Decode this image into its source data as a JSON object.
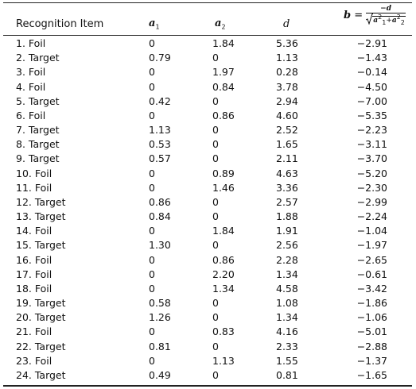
{
  "header": {
    "item": "Recognition Item",
    "a1": {
      "base": "a",
      "sub": "1"
    },
    "a2": {
      "base": "a",
      "sub": "2"
    },
    "d": "d",
    "b": {
      "symbol": "b",
      "equals": "=",
      "numerator": "−d",
      "t1": {
        "base": "a",
        "sup": "2",
        "sub": "1"
      },
      "op": "+",
      "t2": {
        "base": "a",
        "sup": "2",
        "sub": "2"
      }
    }
  },
  "table": {
    "rows": [
      [
        "1. Foil",
        "0",
        "1.84",
        "5.36",
        "−2.91"
      ],
      [
        "2. Target",
        "0.79",
        "0",
        "1.13",
        "−1.43"
      ],
      [
        "3. Foil",
        "0",
        "1.97",
        "0.28",
        "−0.14"
      ],
      [
        "4. Foil",
        "0",
        "0.84",
        "3.78",
        "−4.50"
      ],
      [
        "5. Target",
        "0.42",
        "0",
        "2.94",
        "−7.00"
      ],
      [
        "6. Foil",
        "0",
        "0.86",
        "4.60",
        "−5.35"
      ],
      [
        "7. Target",
        "1.13",
        "0",
        "2.52",
        "−2.23"
      ],
      [
        "8. Target",
        "0.53",
        "0",
        "1.65",
        "−3.11"
      ],
      [
        "9. Target",
        "0.57",
        "0",
        "2.11",
        "−3.70"
      ],
      [
        "10. Foil",
        "0",
        "0.89",
        "4.63",
        "−5.20"
      ],
      [
        "11. Foil",
        "0",
        "1.46",
        "3.36",
        "−2.30"
      ],
      [
        "12. Target",
        "0.86",
        "0",
        "2.57",
        "−2.99"
      ],
      [
        "13. Target",
        "0.84",
        "0",
        "1.88",
        "−2.24"
      ],
      [
        "14. Foil",
        "0",
        "1.84",
        "1.91",
        "−1.04"
      ],
      [
        "15. Target",
        "1.30",
        "0",
        "2.56",
        "−1.97"
      ],
      [
        "16. Foil",
        "0",
        "0.86",
        "2.28",
        "−2.65"
      ],
      [
        "17. Foil",
        "0",
        "2.20",
        "1.34",
        "−0.61"
      ],
      [
        "18. Foil",
        "0",
        "1.34",
        "4.58",
        "−3.42"
      ],
      [
        "19. Target",
        "0.58",
        "0",
        "1.08",
        "−1.86"
      ],
      [
        "20. Target",
        "1.26",
        "0",
        "1.34",
        "−1.06"
      ],
      [
        "21. Foil",
        "0",
        "0.83",
        "4.16",
        "−5.01"
      ],
      [
        "22. Target",
        "0.81",
        "0",
        "2.33",
        "−2.88"
      ],
      [
        "23. Foil",
        "0",
        "1.13",
        "1.55",
        "−1.37"
      ],
      [
        "24. Target",
        "0.49",
        "0",
        "0.81",
        "−1.65"
      ]
    ]
  }
}
